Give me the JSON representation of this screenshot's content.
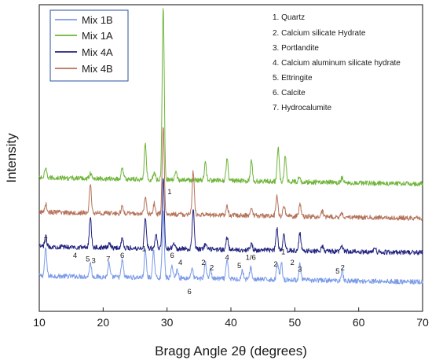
{
  "chart_data": {
    "type": "line",
    "xlabel": "Bragg Angle 2θ (degrees)",
    "ylabel": "Intensity",
    "xlim": [
      10,
      70
    ],
    "xticks": [
      "10",
      "20",
      "30",
      "40",
      "50",
      "60",
      "70"
    ],
    "grid": false,
    "legend_position": "top-left",
    "series": [
      {
        "name": "Mix 1B",
        "color": "#7b9be8",
        "baseline": 0.5,
        "peaks": [
          [
            11.0,
            1.6
          ],
          [
            18.0,
            0.8
          ],
          [
            20.9,
            0.8
          ],
          [
            23.0,
            1.0
          ],
          [
            26.6,
            1.6
          ],
          [
            27.9,
            1.5
          ],
          [
            29.4,
            3.8
          ],
          [
            30.8,
            0.7
          ],
          [
            31.6,
            0.5
          ],
          [
            33.9,
            0.6
          ],
          [
            36.0,
            0.9
          ],
          [
            36.8,
            0.5
          ],
          [
            39.4,
            1.1
          ],
          [
            41.8,
            0.5
          ],
          [
            43.1,
            0.7
          ],
          [
            47.3,
            1.0
          ],
          [
            47.9,
            1.0
          ],
          [
            50.8,
            0.9
          ],
          [
            57.4,
            0.6
          ]
        ]
      },
      {
        "name": "Mix 1A",
        "color": "#6fb53a",
        "baseline": 6.2,
        "peaks": [
          [
            11.0,
            0.5
          ],
          [
            18.0,
            0.3
          ],
          [
            23.0,
            0.7
          ],
          [
            26.6,
            2.0
          ],
          [
            28.0,
            0.4
          ],
          [
            29.4,
            10.0
          ],
          [
            31.4,
            0.4
          ],
          [
            36.0,
            1.0
          ],
          [
            39.4,
            1.3
          ],
          [
            43.2,
            1.2
          ],
          [
            47.4,
            2.0
          ],
          [
            48.5,
            1.5
          ],
          [
            50.7,
            0.3
          ],
          [
            57.4,
            0.3
          ]
        ]
      },
      {
        "name": "Mix 4A",
        "color": "#232380",
        "baseline": 2.2,
        "peaks": [
          [
            11.0,
            0.6
          ],
          [
            18.0,
            1.8
          ],
          [
            21.0,
            0.3
          ],
          [
            23.0,
            0.6
          ],
          [
            26.6,
            1.8
          ],
          [
            28.3,
            0.8
          ],
          [
            29.4,
            4.2
          ],
          [
            31.0,
            0.4
          ],
          [
            34.1,
            2.3
          ],
          [
            36.0,
            0.3
          ],
          [
            39.4,
            0.7
          ],
          [
            43.2,
            0.4
          ],
          [
            47.2,
            1.3
          ],
          [
            48.3,
            0.9
          ],
          [
            50.8,
            1.0
          ],
          [
            54.3,
            0.3
          ],
          [
            57.4,
            0.3
          ],
          [
            62.5,
            0.3
          ]
        ]
      },
      {
        "name": "Mix 4B",
        "color": "#b5735a",
        "baseline": 4.2,
        "peaks": [
          [
            11.0,
            0.5
          ],
          [
            18.0,
            1.6
          ],
          [
            23.0,
            0.4
          ],
          [
            26.6,
            1.0
          ],
          [
            28.0,
            0.6
          ],
          [
            29.4,
            5.0
          ],
          [
            34.1,
            2.5
          ],
          [
            39.4,
            0.5
          ],
          [
            43.2,
            0.4
          ],
          [
            47.2,
            1.2
          ],
          [
            48.3,
            0.6
          ],
          [
            50.8,
            0.7
          ],
          [
            54.3,
            0.3
          ],
          [
            57.4,
            0.2
          ]
        ]
      }
    ],
    "phase_legend": [
      "1. Quartz",
      "2. Calcium silicate Hydrate",
      "3. Portlandite",
      "4. Calcium aluminum silicate hydrate",
      "5. Ettringite",
      "6. Calcite",
      "7. Hydrocalumite"
    ],
    "annotations": [
      {
        "text": "7",
        "x": 11.0,
        "y": 2.8
      },
      {
        "text": "4",
        "x": 15.6,
        "y": 1.9
      },
      {
        "text": "5",
        "x": 17.6,
        "y": 1.7
      },
      {
        "text": "3",
        "x": 18.5,
        "y": 1.6
      },
      {
        "text": "7",
        "x": 20.8,
        "y": 1.7
      },
      {
        "text": "6",
        "x": 23.0,
        "y": 1.9
      },
      {
        "text": "1",
        "x": 26.4,
        "y": 2.3
      },
      {
        "text": "1",
        "x": 30.4,
        "y": 5.6
      },
      {
        "text": "6",
        "x": 30.8,
        "y": 1.9
      },
      {
        "text": "4",
        "x": 32.1,
        "y": 1.5
      },
      {
        "text": "6",
        "x": 33.5,
        "y": -0.2
      },
      {
        "text": "2",
        "x": 35.7,
        "y": 1.5
      },
      {
        "text": "2",
        "x": 37.0,
        "y": 1.2
      },
      {
        "text": "4",
        "x": 39.4,
        "y": 1.8
      },
      {
        "text": "5",
        "x": 41.3,
        "y": 1.3
      },
      {
        "text": "1/6",
        "x": 43.1,
        "y": 1.8
      },
      {
        "text": "2",
        "x": 47.0,
        "y": 1.4
      },
      {
        "text": "1",
        "x": 48.2,
        "y": 2.1
      },
      {
        "text": "2",
        "x": 49.6,
        "y": 1.5
      },
      {
        "text": "3",
        "x": 50.8,
        "y": 1.1
      },
      {
        "text": "5",
        "x": 56.7,
        "y": 1.0
      },
      {
        "text": "2",
        "x": 57.5,
        "y": 1.2
      }
    ]
  }
}
